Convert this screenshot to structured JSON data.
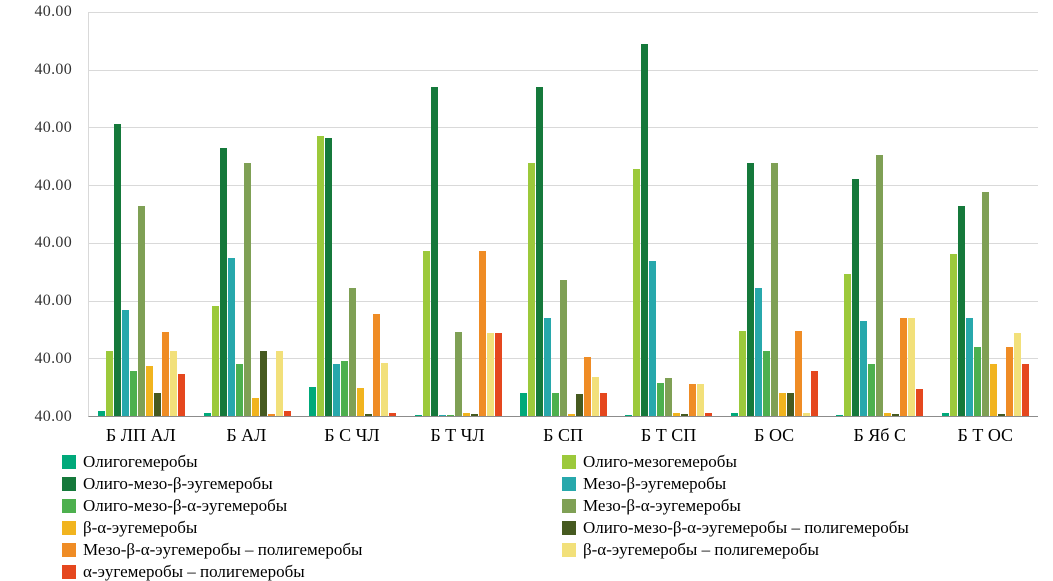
{
  "chart_data": {
    "type": "bar",
    "title": "",
    "xlabel": "",
    "ylabel": "",
    "categories": [
      "Б ЛП АЛ",
      "Б АЛ",
      "Б С ЧЛ",
      "Б Т ЧЛ",
      "Б СП",
      "Б Т СП",
      "Б ОС",
      "Б Яб С",
      "Б Т ОС"
    ],
    "ylim": [
      0,
      35
    ],
    "gridline_step": 5,
    "grid": true,
    "legend_position": "bottom",
    "y_tick_labels": [
      "40.00",
      "40.00",
      "40.00",
      "40.00",
      "40.00",
      "40.00",
      "40.00",
      "40.00"
    ],
    "colors": {
      "gridline": "#d9d9d9",
      "axis_line": "#8c8c8c",
      "tick_text": "#333333"
    },
    "series": [
      {
        "name": "Олигогемеробы",
        "color": "#00A97A",
        "values": [
          0.4,
          0.3,
          2.5,
          0.1,
          2.0,
          0.1,
          0.3,
          0.1,
          0.3
        ]
      },
      {
        "name": "Олиго-мезогемеробы",
        "color": "#9CC93B",
        "values": [
          5.6,
          9.5,
          24.3,
          14.3,
          21.9,
          21.4,
          7.4,
          12.3,
          14.0
        ]
      },
      {
        "name": "Олиго-мезо-β-эугемеробы",
        "color": "#15793B",
        "values": [
          25.3,
          23.2,
          24.1,
          28.5,
          28.5,
          32.2,
          21.9,
          20.5,
          18.2
        ]
      },
      {
        "name": "Мезо-β-эугемеробы",
        "color": "#27A8AC",
        "values": [
          9.2,
          13.7,
          4.5,
          0.1,
          8.5,
          13.4,
          11.1,
          8.2,
          8.5
        ]
      },
      {
        "name": "Олиго-мезо-β-α-эугемеробы",
        "color": "#4DB04E",
        "values": [
          3.9,
          4.5,
          4.8,
          0.1,
          2.0,
          2.9,
          5.6,
          4.5,
          6.0
        ]
      },
      {
        "name": "Мезо-β-α-эугемеробы",
        "color": "#7FA055",
        "values": [
          18.2,
          21.9,
          11.1,
          7.3,
          11.8,
          3.3,
          21.9,
          22.6,
          19.4
        ]
      },
      {
        "name": "β-α-эугемеробы",
        "color": "#F1B41F",
        "values": [
          4.3,
          1.6,
          2.4,
          0.3,
          0.2,
          0.3,
          2.0,
          0.3,
          4.5
        ]
      },
      {
        "name": "Олиго-мезо-β-α-эугемеробы – полигемеробы",
        "color": "#465A20",
        "values": [
          2.0,
          5.6,
          0.2,
          0.2,
          1.9,
          0.2,
          2.0,
          0.2,
          0.2
        ]
      },
      {
        "name": "Мезо-β-α-эугемеробы – полигемеробы",
        "color": "#EF8C25",
        "values": [
          7.3,
          0.2,
          8.8,
          14.3,
          5.1,
          2.8,
          7.4,
          8.5,
          6.0
        ]
      },
      {
        "name": "β-α-эугемеробы – полигемеробы",
        "color": "#F2E07A",
        "values": [
          5.6,
          5.6,
          4.6,
          7.2,
          3.4,
          2.8,
          0.3,
          8.5,
          7.2
        ]
      },
      {
        "name": "α-эугемеробы – полигемеробы",
        "color": "#E5471E",
        "values": [
          3.6,
          0.4,
          0.3,
          7.2,
          2.0,
          0.3,
          3.9,
          2.3,
          4.5
        ]
      }
    ]
  }
}
